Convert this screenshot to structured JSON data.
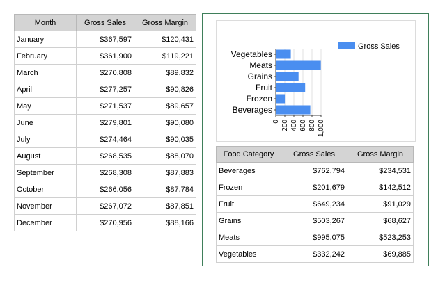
{
  "monthly_table": {
    "headers": [
      "Month",
      "Gross Sales",
      "Gross Margin"
    ],
    "rows": [
      [
        "January",
        "$367,597",
        "$120,431"
      ],
      [
        "February",
        "$361,900",
        "$119,221"
      ],
      [
        "March",
        "$270,808",
        "$89,832"
      ],
      [
        "April",
        "$277,257",
        "$90,826"
      ],
      [
        "May",
        "$271,537",
        "$89,657"
      ],
      [
        "June",
        "$279,801",
        "$90,080"
      ],
      [
        "July",
        "$274,464",
        "$90,035"
      ],
      [
        "August",
        "$268,535",
        "$88,070"
      ],
      [
        "September",
        "$268,308",
        "$87,883"
      ],
      [
        "October",
        "$266,056",
        "$87,784"
      ],
      [
        "November",
        "$267,072",
        "$87,851"
      ],
      [
        "December",
        "$270,956",
        "$88,166"
      ]
    ]
  },
  "category_table": {
    "headers": [
      "Food Category",
      "Gross Sales",
      "Gross Margin"
    ],
    "rows": [
      [
        "Beverages",
        "$762,794",
        "$234,531"
      ],
      [
        "Frozen",
        "$201,679",
        "$142,512"
      ],
      [
        "Fruit",
        "$649,234",
        "$91,029"
      ],
      [
        "Grains",
        "$503,267",
        "$68,627"
      ],
      [
        "Meats",
        "$995,075",
        "$523,253"
      ],
      [
        "Vegetables",
        "$332,242",
        "$69,885"
      ]
    ]
  },
  "chart_data": {
    "type": "bar",
    "orientation": "horizontal",
    "categories": [
      "Vegetables",
      "Meats",
      "Grains",
      "Fruit",
      "Frozen",
      "Beverages"
    ],
    "series": [
      {
        "name": "Gross Sales",
        "values": [
          332.242,
          995.075,
          503.267,
          649.234,
          201.679,
          762.794
        ]
      }
    ],
    "xticks": [
      "0",
      "200",
      "400",
      "600",
      "800",
      "1,000"
    ],
    "xlim": [
      0,
      1000
    ],
    "legend_position": "top-right",
    "grid": true,
    "bar_color": "#4a8ef0"
  }
}
